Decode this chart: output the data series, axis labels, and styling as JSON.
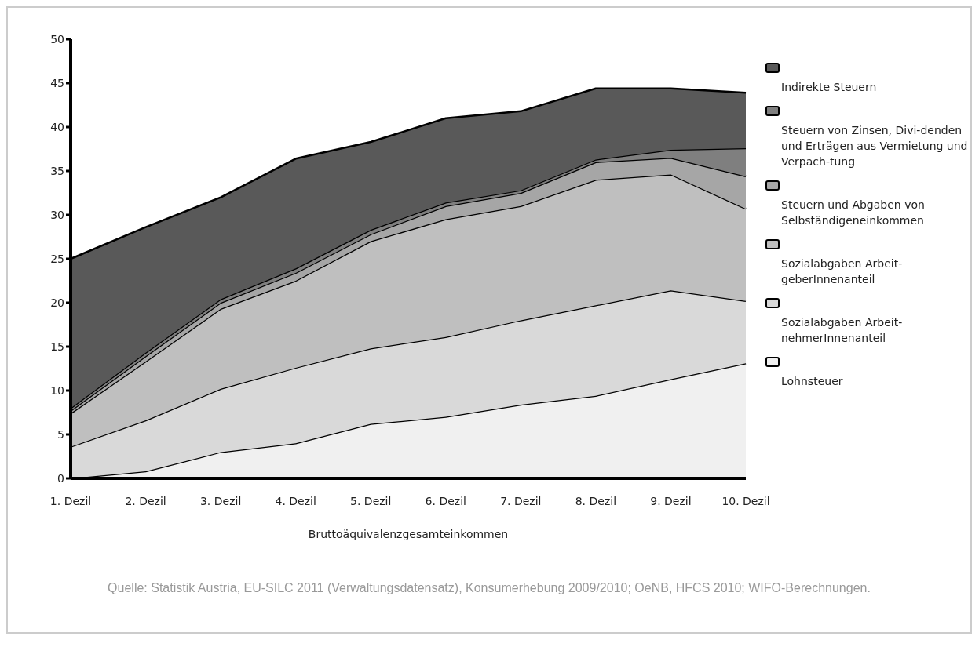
{
  "chart_data": {
    "type": "area",
    "stacked": true,
    "xlabel": "Bruttoäquivalenzgesamteinkommen",
    "categories": [
      "1. Dezil",
      "2. Dezil",
      "3. Dezil",
      "4. Dezil",
      "5. Dezil",
      "6. Dezil",
      "7. Dezil",
      "8. Dezil",
      "9. Dezil",
      "10. Dezil"
    ],
    "series": [
      {
        "name": "Lohnsteuer",
        "color": "#f0f0f0",
        "values": [
          0,
          0.8,
          3.0,
          4.0,
          6.2,
          7.0,
          8.4,
          9.4,
          11.3,
          13.1
        ]
      },
      {
        "name": "Sozialabgaben Arbeit-nehmerInnenanteil",
        "color": "#d9d9d9",
        "values": [
          3.6,
          5.8,
          7.2,
          8.6,
          8.6,
          9.1,
          9.6,
          10.3,
          10.1,
          7.1
        ]
      },
      {
        "name": "Sozialabgaben Arbeit-geberInnenanteil",
        "color": "#bfbfbf",
        "values": [
          3.8,
          6.7,
          9.1,
          9.9,
          12.2,
          13.4,
          13.0,
          14.3,
          13.2,
          10.5
        ]
      },
      {
        "name": "Steuern und Abgaben von Selbständigeneinkommen",
        "color": "#a6a6a6",
        "values": [
          0.3,
          0.6,
          0.7,
          0.9,
          0.8,
          1.5,
          1.5,
          2.0,
          1.9,
          3.7
        ]
      },
      {
        "name": "Steuern von Zinsen, Divi-denden und Erträgen aus Vermietung und Verpach-tung",
        "color": "#7f7f7f",
        "values": [
          0.3,
          0.4,
          0.4,
          0.5,
          0.5,
          0.4,
          0.3,
          0.3,
          0.9,
          3.2
        ]
      },
      {
        "name": "Indirekte Steuern",
        "color": "#595959",
        "values": [
          17.0,
          14.3,
          11.6,
          12.5,
          10.0,
          9.6,
          9.0,
          8.1,
          7.0,
          6.3
        ]
      }
    ],
    "ylim": [
      0,
      50
    ],
    "yticks": [
      0,
      5,
      10,
      15,
      20,
      25,
      30,
      35,
      40,
      45,
      50
    ],
    "legend": "right",
    "annotations": [
      "Quelle: Statistik Austria, EU-SILC 2011 (Verwaltungsdatensatz), Konsumerhebung 2009/2010; OeNB, HFCS 2010; WIFO-Berechnungen."
    ]
  }
}
